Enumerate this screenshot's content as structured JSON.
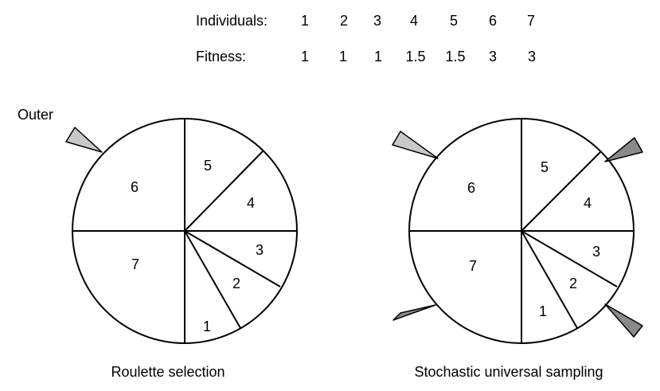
{
  "table": {
    "individuals_label": "Individuals:",
    "fitness_label": "Fitness:",
    "individuals": [
      "1",
      "2",
      "3",
      "4",
      "5",
      "6",
      "7"
    ],
    "fitness": [
      "1",
      "1",
      "1",
      "1.5",
      "1.5",
      "3",
      "3"
    ]
  },
  "roulette": {
    "caption": "Roulette selection",
    "pointer_label": "Outer",
    "segments": [
      "1",
      "2",
      "3",
      "4",
      "5",
      "6",
      "7"
    ]
  },
  "sus": {
    "caption": "Stochastic universal sampling",
    "segments": [
      "1",
      "2",
      "3",
      "4",
      "5",
      "6",
      "7"
    ]
  },
  "colors": {
    "pointer_light": "#c8c8c8",
    "pointer_dark": "#8a8a8a",
    "stroke": "#000000"
  }
}
